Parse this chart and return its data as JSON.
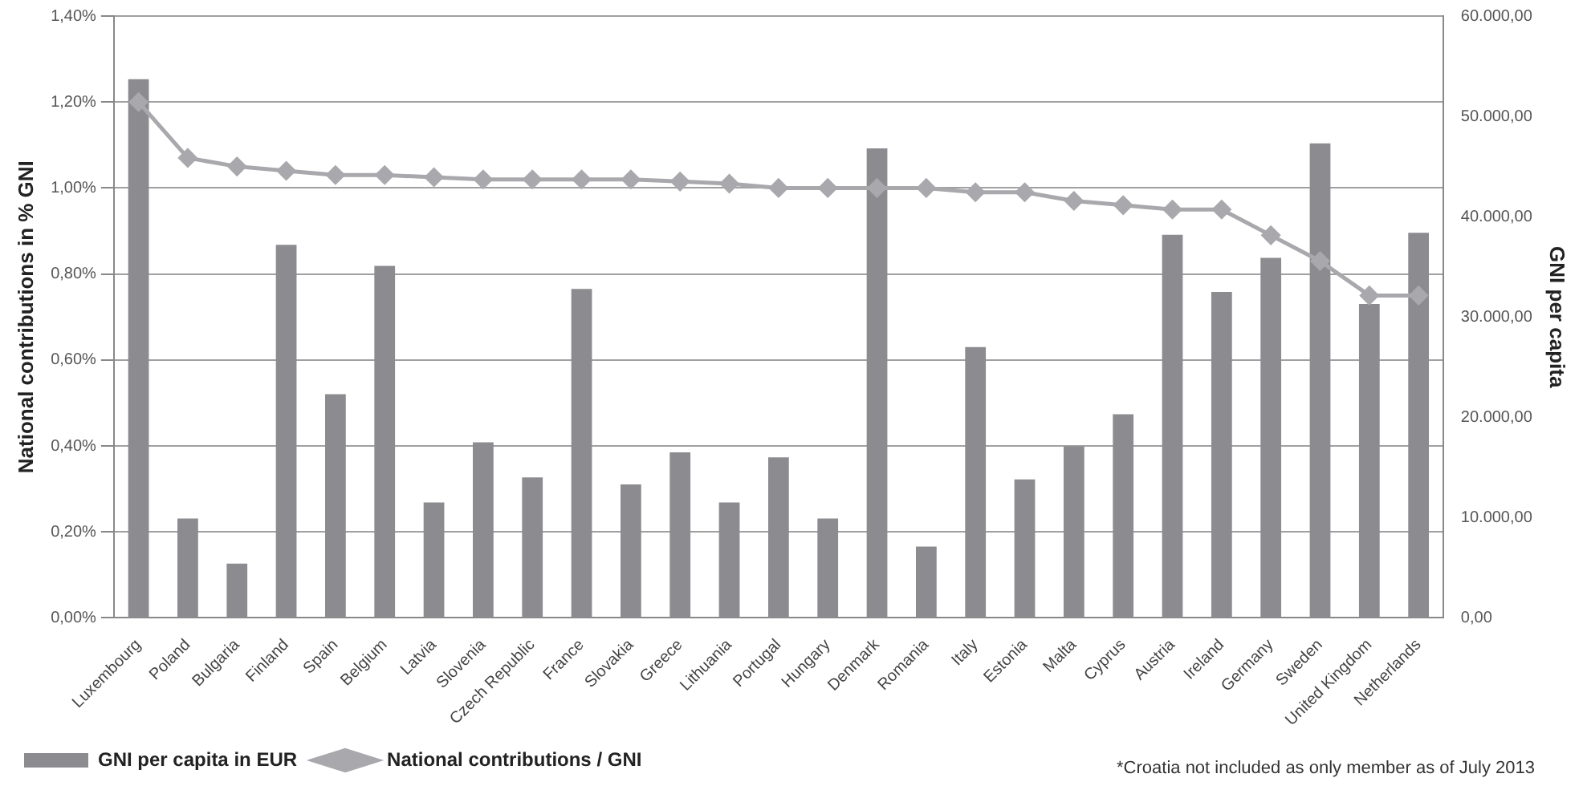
{
  "chart_data": {
    "type": "bar",
    "ylabel": "National contributions in % GNI",
    "y2label": "GNI per capita",
    "categories": [
      "Luxembourg",
      "Poland",
      "Bulgaria",
      "Finland",
      "Spain",
      "Belgium",
      "Latvia",
      "Slovenia",
      "Czech Republic",
      "France",
      "Slovakia",
      "Greece",
      "Lithuania",
      "Portugal",
      "Hungary",
      "Denmark",
      "Romania",
      "Italy",
      "Estonia",
      "Malta",
      "Cyprus",
      "Austria",
      "Ireland",
      "Germany",
      "Sweden",
      "United Kingdom",
      "Netherlands"
    ],
    "series": [
      {
        "name": "GNI per capita in EUR",
        "axis": "y2",
        "color": "#8c8c90",
        "values": [
          53700,
          9900,
          5400,
          37200,
          22300,
          35100,
          11500,
          17500,
          14000,
          32800,
          13300,
          16500,
          11500,
          16000,
          9900,
          46800,
          7100,
          27000,
          13800,
          17100,
          20300,
          38200,
          32500,
          35900,
          47300,
          31300,
          38400
        ]
      },
      {
        "name": "National contributions / GNI",
        "type": "line",
        "color": "#a8a8ad",
        "marker": "diamond",
        "line_style": "solid",
        "values": [
          1.2,
          1.07,
          1.05,
          1.04,
          1.03,
          1.03,
          1.025,
          1.02,
          1.02,
          1.02,
          1.02,
          1.015,
          1.01,
          1.0,
          1.0,
          1.0,
          1.0,
          0.99,
          0.99,
          0.97,
          0.96,
          0.95,
          0.95,
          0.89,
          0.83,
          0.75,
          0.75
        ]
      }
    ],
    "ylim": [
      0,
      1.4
    ],
    "yticks": [
      {
        "value": 0,
        "label": "0,00%"
      },
      {
        "value": 0.2,
        "label": "0,20%"
      },
      {
        "value": 0.4,
        "label": "0,40%"
      },
      {
        "value": 0.6,
        "label": "0,60%"
      },
      {
        "value": 0.8,
        "label": "0,80%"
      },
      {
        "value": 1.0,
        "label": "1,00%"
      },
      {
        "value": 1.2,
        "label": "1,20%"
      },
      {
        "value": 1.4,
        "label": "1,40%"
      }
    ],
    "y2lim": [
      0,
      60000
    ],
    "y2ticks": [
      {
        "value": 0,
        "label": "0,00"
      },
      {
        "value": 10000,
        "label": "10.000,00"
      },
      {
        "value": 20000,
        "label": "20.000,00"
      },
      {
        "value": 30000,
        "label": "30.000,00"
      },
      {
        "value": 40000,
        "label": "40.000,00"
      },
      {
        "value": 50000,
        "label": "50.000,00"
      },
      {
        "value": 60000,
        "label": "60.000,00"
      }
    ],
    "grid": "y",
    "legend": "bottom",
    "annotations": [
      "*Croatia not included as  only  member as of July 2013"
    ]
  }
}
